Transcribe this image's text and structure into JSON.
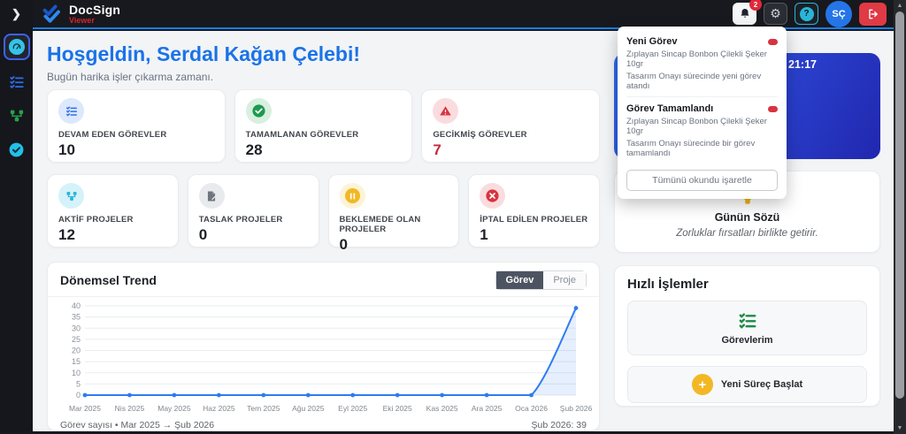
{
  "brand": {
    "name": "DocSign",
    "sub": "Viewer"
  },
  "topbar": {
    "bell_badge": "2",
    "help_glyph": "?",
    "avatar_initials": "SÇ"
  },
  "sidebar": {
    "items": [
      "dashboard",
      "tasks",
      "workflow",
      "approvals"
    ]
  },
  "welcome": {
    "title": "Hoşgeldin, Serdal Kağan Çelebi!",
    "subtitle": "Bugün harika işler çıkarma zamanı."
  },
  "stats_row1": [
    {
      "label": "DEVAM EDEN GÖREVLER",
      "value": "10",
      "icon": "list-check-icon"
    },
    {
      "label": "TAMAMLANAN GÖREVLER",
      "value": "28",
      "icon": "check-circle-icon"
    },
    {
      "label": "GECİKMİŞ GÖREVLER",
      "value": "7",
      "icon": "warning-triangle-icon"
    }
  ],
  "stats_row2": [
    {
      "label": "AKTİF PROJELER",
      "value": "12",
      "icon": "share-nodes-icon"
    },
    {
      "label": "TASLAK PROJELER",
      "value": "0",
      "icon": "file-pen-icon"
    },
    {
      "label": "BEKLEMEDE OLAN PROJELER",
      "value": "0",
      "icon": "pause-circle-icon"
    },
    {
      "label": "İPTAL EDİLEN PROJELER",
      "value": "1",
      "icon": "x-circle-icon"
    }
  ],
  "trend": {
    "title": "Dönemsel Trend",
    "toggles": {
      "active": "Görev",
      "inactive": "Proje"
    },
    "footer_left": "Görev sayısı • Mar 2025 → Şub 2026",
    "footer_right": "Şub 2026: 39"
  },
  "chart_data": {
    "type": "line",
    "title": "Dönemsel Trend",
    "categories": [
      "Mar 2025",
      "Nis 2025",
      "May 2025",
      "Haz 2025",
      "Tem 2025",
      "Ağu 2025",
      "Eyl 2025",
      "Eki 2025",
      "Kas 2025",
      "Ara 2025",
      "Oca 2026",
      "Şub 2026"
    ],
    "series": [
      {
        "name": "Görev sayısı",
        "values": [
          0,
          0,
          0,
          0,
          0,
          0,
          0,
          0,
          0,
          0,
          0,
          39
        ]
      }
    ],
    "xlabel": "",
    "ylabel": "",
    "ylim": [
      0,
      40
    ],
    "ytick_step": 5,
    "grid": true,
    "legend_position": "none",
    "line_color": "#2e7cf0",
    "fill_color": "rgba(46,124,240,0.12)"
  },
  "clock_card": {
    "time": "21:17"
  },
  "notifications": {
    "items": [
      {
        "title": "Yeni Görev",
        "line1": "Zıplayan Sincap Bonbon Çilekli Şeker 10gr",
        "line2": "Tasarım Onayı sürecinde yeni görev atandı"
      },
      {
        "title": "Görev Tamamlandı",
        "line1": "Zıplayan Sincap Bonbon Çilekli Şeker 10gr",
        "line2": "Tasarım Onayı sürecinde bir görev tamamlandı"
      }
    ],
    "mark_all_label": "Tümünü okundu işaretle"
  },
  "quote": {
    "title": "Günün Sözü",
    "text": "Zorluklar fırsatları birlikte getirir."
  },
  "quick_actions": {
    "title": "Hızlı İşlemler",
    "tasks_label": "Görevlerim",
    "new_process_label": "Yeni Süreç Başlat"
  },
  "colors": {
    "accent_blue": "#1a73e8",
    "danger_red": "#d8333f",
    "success_green": "#1d9a4e",
    "cyan": "#29b6d8",
    "yellow": "#f2b824",
    "navbar_dark": "#17191e"
  }
}
